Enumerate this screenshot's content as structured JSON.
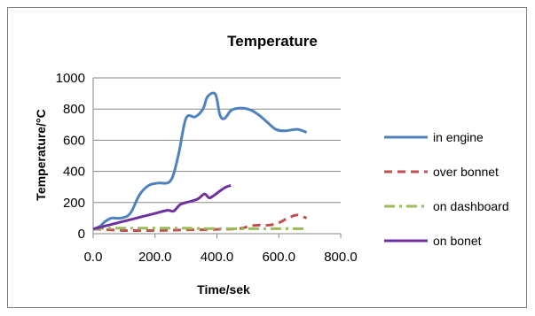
{
  "chart_data": {
    "type": "line",
    "title": "Temperature",
    "xlabel": "Time/sek",
    "ylabel": "Temperature/°C",
    "xlim": [
      0,
      800
    ],
    "ylim": [
      0,
      1000
    ],
    "x_ticks": [
      "0.0",
      "200.0",
      "400.0",
      "600.0",
      "800.0"
    ],
    "y_ticks": [
      "0",
      "200",
      "400",
      "600",
      "800",
      "1000"
    ],
    "grid": "horizontal",
    "legend": "right",
    "series": [
      {
        "name": "in engine",
        "color": "#4f81bd",
        "style": "solid",
        "x": [
          0,
          20,
          40,
          60,
          90,
          120,
          150,
          180,
          210,
          250,
          275,
          300,
          330,
          355,
          370,
          395,
          410,
          425,
          445,
          470,
          500,
          530,
          560,
          590,
          620,
          660,
          690
        ],
        "y": [
          30,
          45,
          80,
          100,
          100,
          130,
          250,
          310,
          325,
          340,
          500,
          740,
          750,
          800,
          880,
          895,
          760,
          740,
          790,
          805,
          800,
          770,
          720,
          670,
          660,
          670,
          650
        ]
      },
      {
        "name": "over bonnet",
        "color": "#c0504d",
        "style": "dashed",
        "x": [
          0,
          50,
          100,
          150,
          200,
          250,
          300,
          350,
          400,
          450,
          480,
          510,
          540,
          570,
          600,
          630,
          660,
          690
        ],
        "y": [
          30,
          25,
          20,
          20,
          20,
          22,
          25,
          25,
          28,
          30,
          35,
          50,
          55,
          55,
          70,
          100,
          120,
          100
        ]
      },
      {
        "name": "on dashboard",
        "color": "#9bbb59",
        "style": "dashdot",
        "x": [
          0,
          50,
          100,
          150,
          200,
          250,
          300,
          350,
          400,
          450,
          500,
          550,
          600,
          650,
          680
        ],
        "y": [
          30,
          35,
          35,
          35,
          35,
          35,
          35,
          33,
          33,
          32,
          32,
          32,
          32,
          32,
          32
        ]
      },
      {
        "name": "on bonet",
        "color": "#7030a0",
        "style": "solid",
        "x": [
          0,
          40,
          80,
          120,
          160,
          200,
          240,
          260,
          280,
          300,
          320,
          340,
          360,
          375,
          390,
          410,
          430,
          445
        ],
        "y": [
          30,
          50,
          70,
          90,
          110,
          130,
          150,
          145,
          185,
          200,
          210,
          225,
          255,
          230,
          245,
          275,
          300,
          310
        ]
      }
    ]
  }
}
